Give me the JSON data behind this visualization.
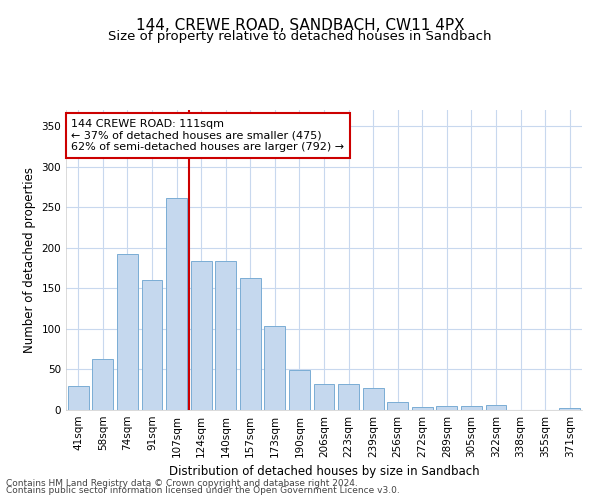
{
  "title": "144, CREWE ROAD, SANDBACH, CW11 4PX",
  "subtitle": "Size of property relative to detached houses in Sandbach",
  "xlabel": "Distribution of detached houses by size in Sandbach",
  "ylabel": "Number of detached properties",
  "categories": [
    "41sqm",
    "58sqm",
    "74sqm",
    "91sqm",
    "107sqm",
    "124sqm",
    "140sqm",
    "157sqm",
    "173sqm",
    "190sqm",
    "206sqm",
    "223sqm",
    "239sqm",
    "256sqm",
    "272sqm",
    "289sqm",
    "305sqm",
    "322sqm",
    "338sqm",
    "355sqm",
    "371sqm"
  ],
  "values": [
    30,
    63,
    193,
    160,
    261,
    184,
    184,
    163,
    103,
    49,
    32,
    32,
    27,
    10,
    4,
    5,
    5,
    6,
    0,
    0,
    3
  ],
  "bar_color": "#c5d8ee",
  "bar_edge_color": "#7aadd4",
  "vline_x_index": 4,
  "vline_color": "#cc0000",
  "annotation_text": "144 CREWE ROAD: 111sqm\n← 37% of detached houses are smaller (475)\n62% of semi-detached houses are larger (792) →",
  "annotation_box_facecolor": "#ffffff",
  "annotation_box_edgecolor": "#cc0000",
  "ylim": [
    0,
    370
  ],
  "yticks": [
    0,
    50,
    100,
    150,
    200,
    250,
    300,
    350
  ],
  "fig_facecolor": "#ffffff",
  "plot_facecolor": "#ffffff",
  "grid_color": "#c8d8ee",
  "footer_line1": "Contains HM Land Registry data © Crown copyright and database right 2024.",
  "footer_line2": "Contains public sector information licensed under the Open Government Licence v3.0.",
  "title_fontsize": 11,
  "subtitle_fontsize": 9.5,
  "axis_label_fontsize": 8.5,
  "tick_fontsize": 7.5,
  "annotation_fontsize": 8,
  "footer_fontsize": 6.5
}
